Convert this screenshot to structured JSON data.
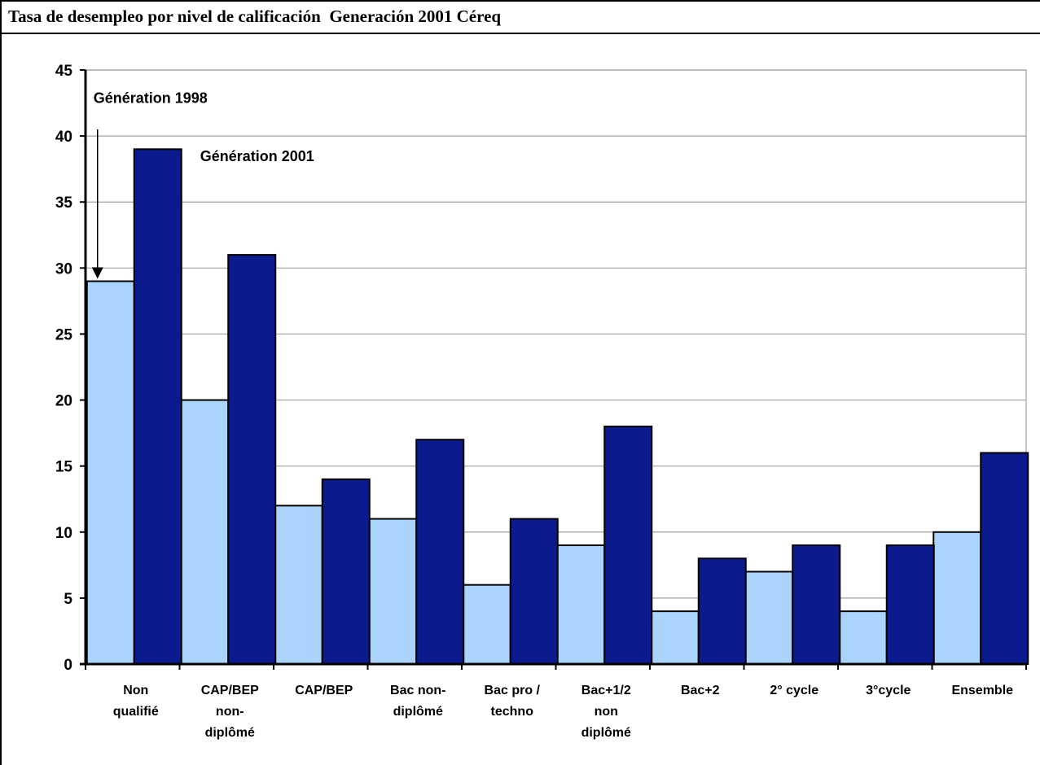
{
  "title": "Tasa de desempleo por nivel de calificación  Generación 2001 Céreq",
  "chart_data": {
    "type": "bar",
    "categories": [
      [
        "Non",
        "qualifié"
      ],
      [
        "CAP/BEP",
        "non-",
        "diplômé"
      ],
      [
        "CAP/BEP"
      ],
      [
        "Bac non-",
        "diplômé"
      ],
      [
        "Bac pro /",
        "techno"
      ],
      [
        "Bac+1/2",
        "non",
        "diplômé"
      ],
      [
        "Bac+2"
      ],
      [
        "2° cycle"
      ],
      [
        "3°cycle"
      ],
      [
        "Ensemble"
      ]
    ],
    "series": [
      {
        "name": "Génération 1998",
        "color": "#aad4fb",
        "values": [
          29,
          20,
          12,
          11,
          6,
          9,
          4,
          7,
          4,
          10
        ]
      },
      {
        "name": "Génération 2001",
        "color": "#0b1a8d",
        "values": [
          39,
          31,
          14,
          17,
          11,
          18,
          8,
          9,
          9,
          16
        ]
      }
    ],
    "ylim": [
      0,
      45
    ],
    "yticks": [
      0,
      5,
      10,
      15,
      20,
      25,
      30,
      35,
      40,
      45
    ],
    "grid": true,
    "annotations": [
      {
        "text": "Génération 1998",
        "series": 0,
        "arrow": true
      },
      {
        "text": "Génération 2001",
        "series": 1,
        "arrow": false
      }
    ]
  }
}
